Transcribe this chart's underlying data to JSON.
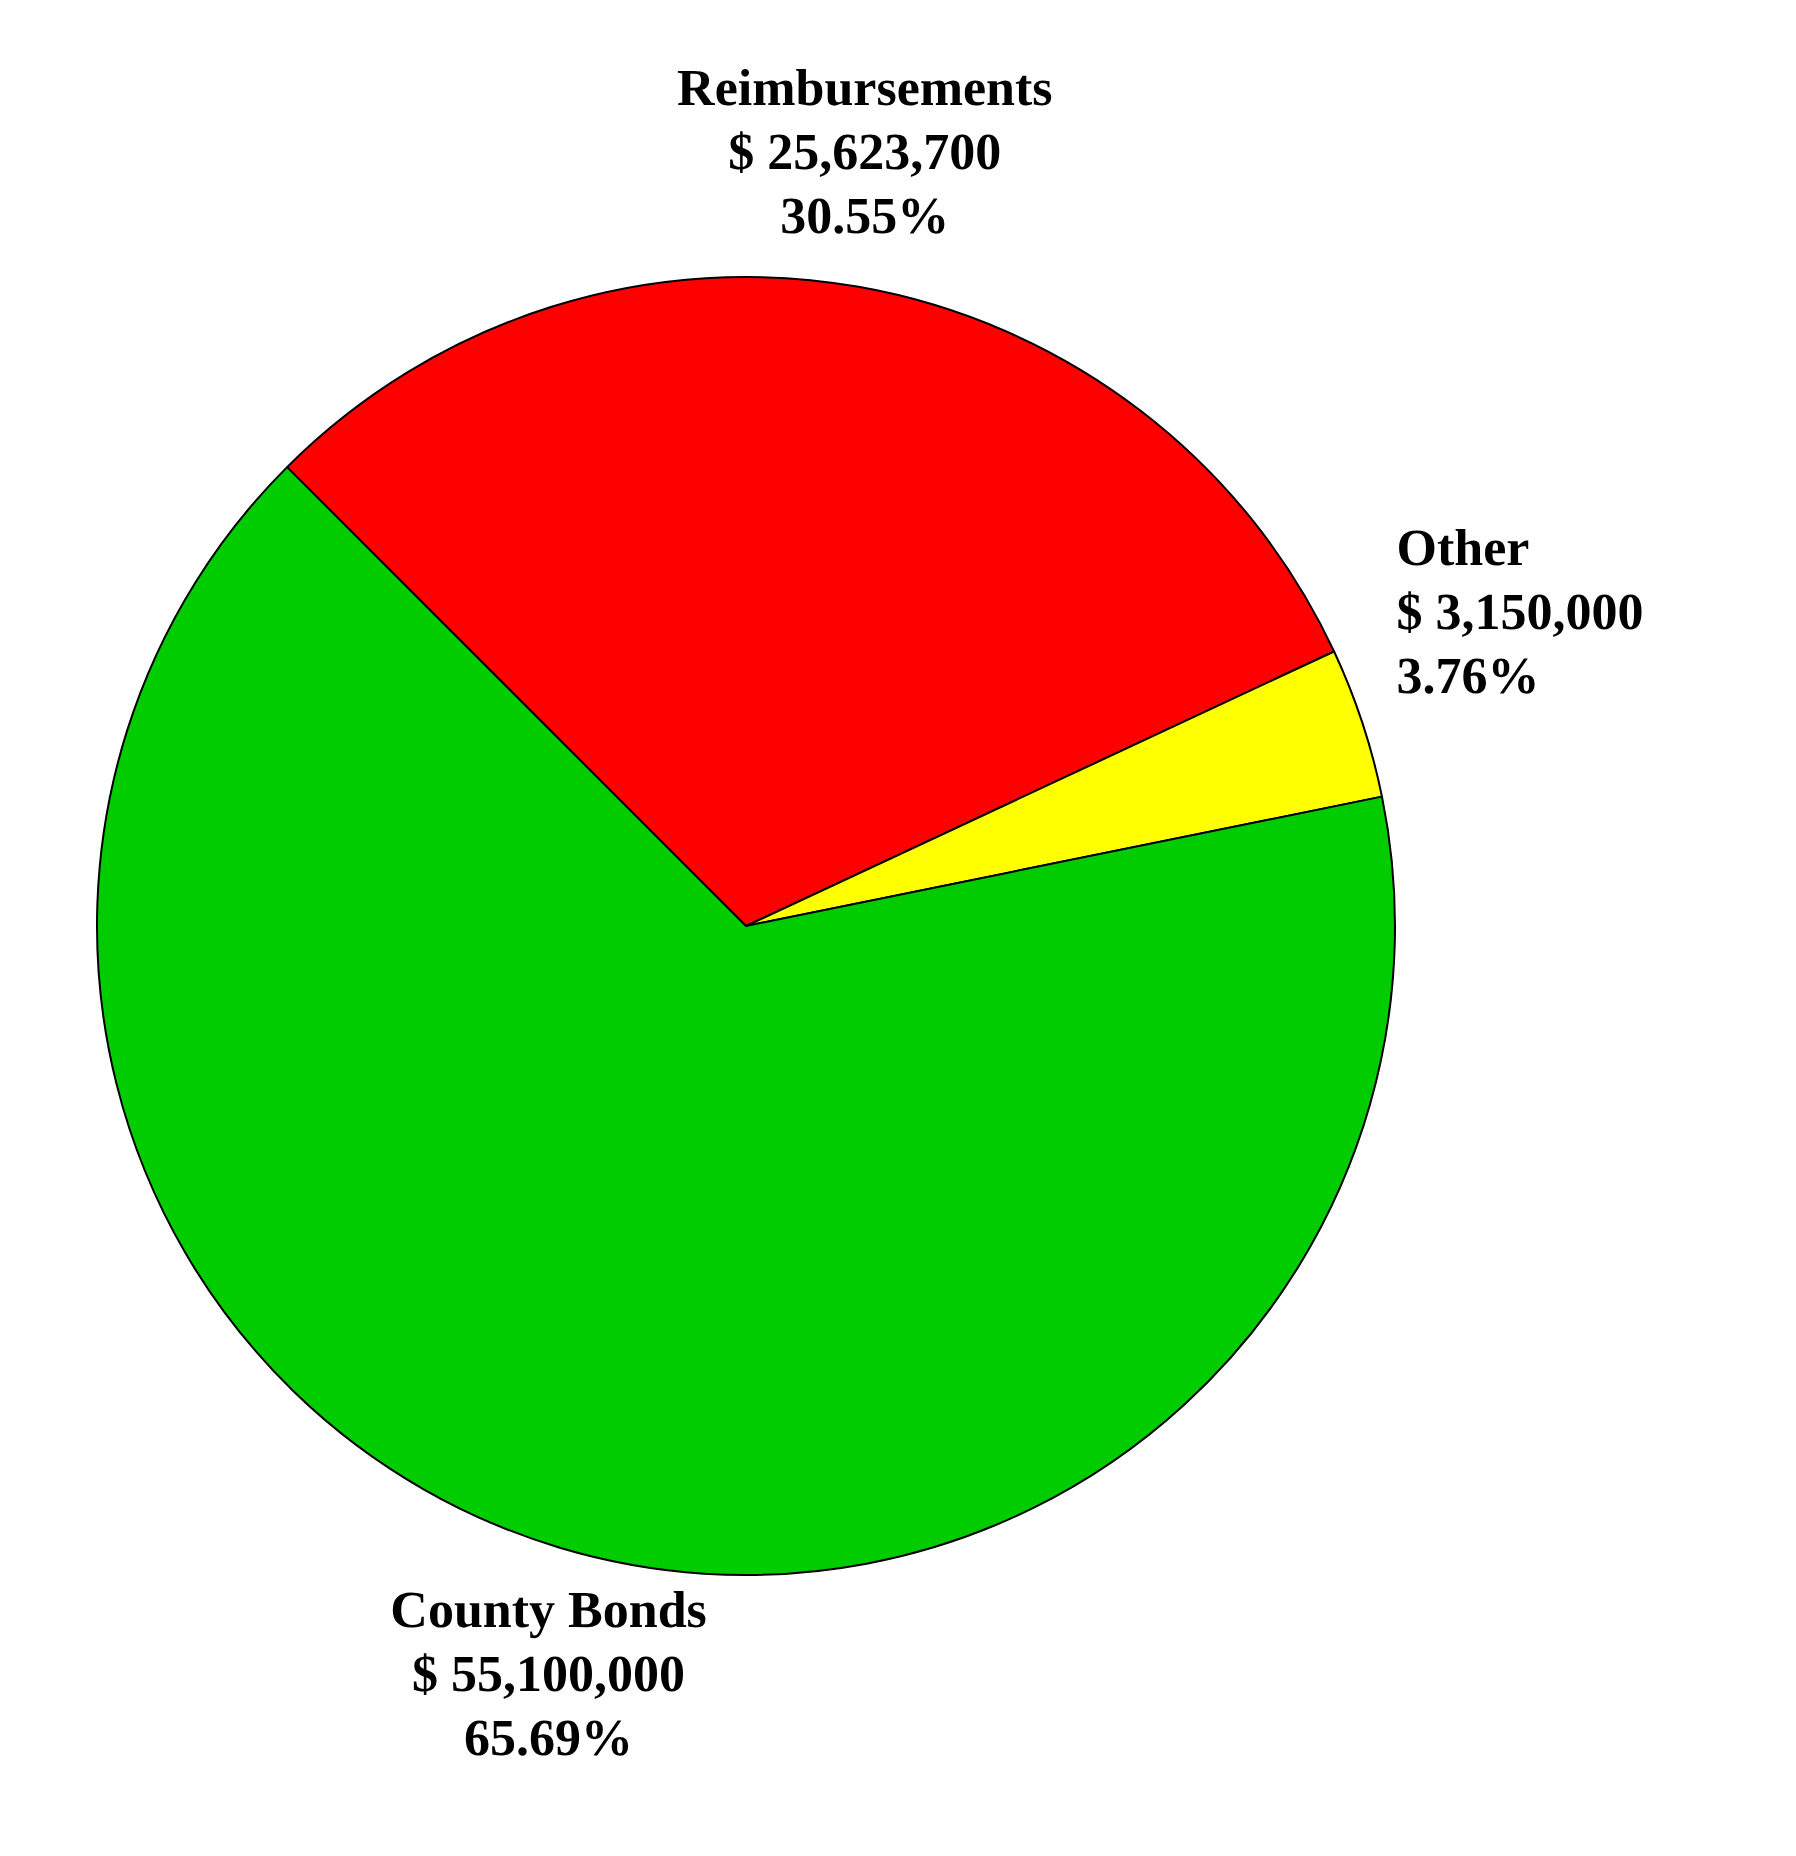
{
  "chart_data": {
    "type": "pie",
    "categories": [
      "Reimbursements",
      "Other",
      "County Bonds"
    ],
    "values": [
      25623700,
      3150000,
      55100000
    ],
    "colors": [
      "#ff0000",
      "#ffff00",
      "#00cc00"
    ],
    "value_labels": [
      "$ 25,623,700\n30.55%",
      "$ 3,150,000\n3.76%",
      "$ 55,100,000\n65.69%"
    ],
    "legend": false
  }
}
